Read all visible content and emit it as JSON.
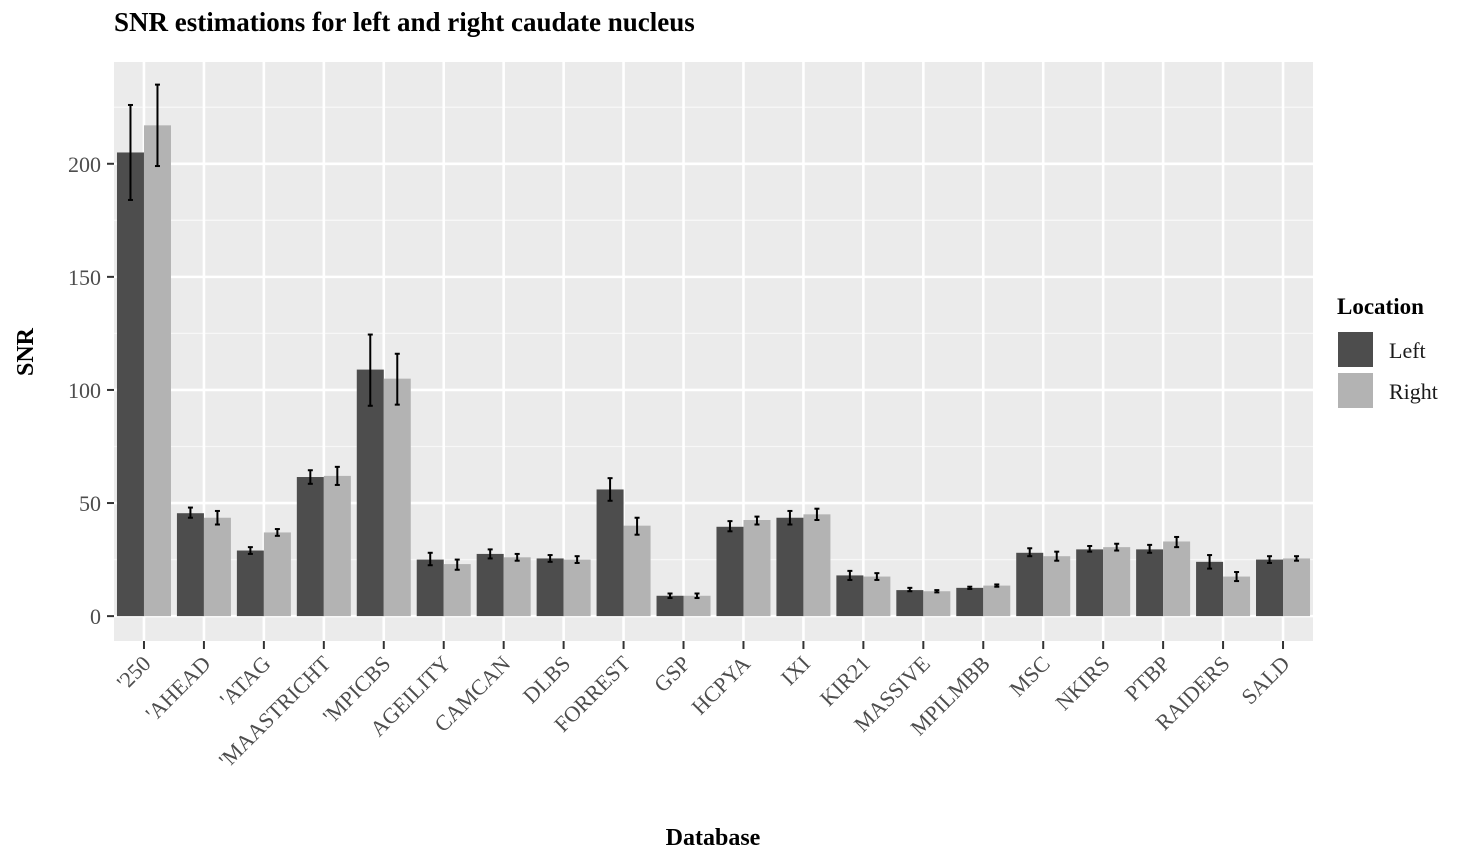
{
  "chart_data": {
    "type": "bar",
    "title": "SNR estimations for left and right caudate nucleus",
    "xlabel": "Database",
    "ylabel": "SNR",
    "ylim": [
      -11,
      245
    ],
    "yticks": [
      0,
      50,
      100,
      150,
      200
    ],
    "grid": true,
    "legend": {
      "title": "Location",
      "position": "right"
    },
    "categories": [
      "'250",
      "'AHEAD",
      "'ATAG",
      "'MAASTRICHT",
      "'MPICBS",
      "AGEILITY",
      "CAMCAN",
      "DLBS",
      "FORREST",
      "GSP",
      "HCPYA",
      "IXI",
      "KIR21",
      "MASSIVE",
      "MPILMBB",
      "MSC",
      "NKIRS",
      "PTBP",
      "RAIDERS",
      "SALD"
    ],
    "series": [
      {
        "name": "Left",
        "color": "#4d4d4d",
        "values": [
          205,
          45.5,
          29,
          61.5,
          109,
          25,
          27.5,
          25.5,
          56,
          9,
          39.5,
          43.5,
          18,
          11.5,
          12.5,
          28,
          29.5,
          29.5,
          24,
          25
        ],
        "err_low": [
          184,
          43.5,
          27.5,
          58.5,
          93,
          22.5,
          25.5,
          24,
          51,
          8,
          37.5,
          40.5,
          16,
          11,
          12,
          26.5,
          28.5,
          28,
          21,
          23.5
        ],
        "err_high": [
          226,
          48,
          30.5,
          64.5,
          124.5,
          28,
          29.5,
          27,
          61,
          10,
          42,
          46.5,
          20,
          12.5,
          13,
          30,
          31,
          31.5,
          27,
          26.5
        ]
      },
      {
        "name": "Right",
        "color": "#b3b3b3",
        "values": [
          217,
          43.5,
          37,
          62,
          105,
          23,
          26,
          25,
          40,
          9,
          42.5,
          45,
          17.5,
          11,
          13.5,
          26.5,
          30.5,
          33,
          17.5,
          25.5
        ],
        "err_low": [
          199,
          40.5,
          35.5,
          58,
          93.5,
          20.5,
          24.5,
          23.5,
          36,
          8,
          40.5,
          42.5,
          16,
          10.5,
          13,
          24.5,
          29,
          30.5,
          15.5,
          24.5
        ],
        "err_high": [
          235,
          46.5,
          38.5,
          66,
          116,
          25,
          27.5,
          26.5,
          43.5,
          10,
          44,
          47.5,
          19,
          11.5,
          14,
          28.5,
          32,
          35,
          19.5,
          26.5
        ]
      }
    ]
  }
}
